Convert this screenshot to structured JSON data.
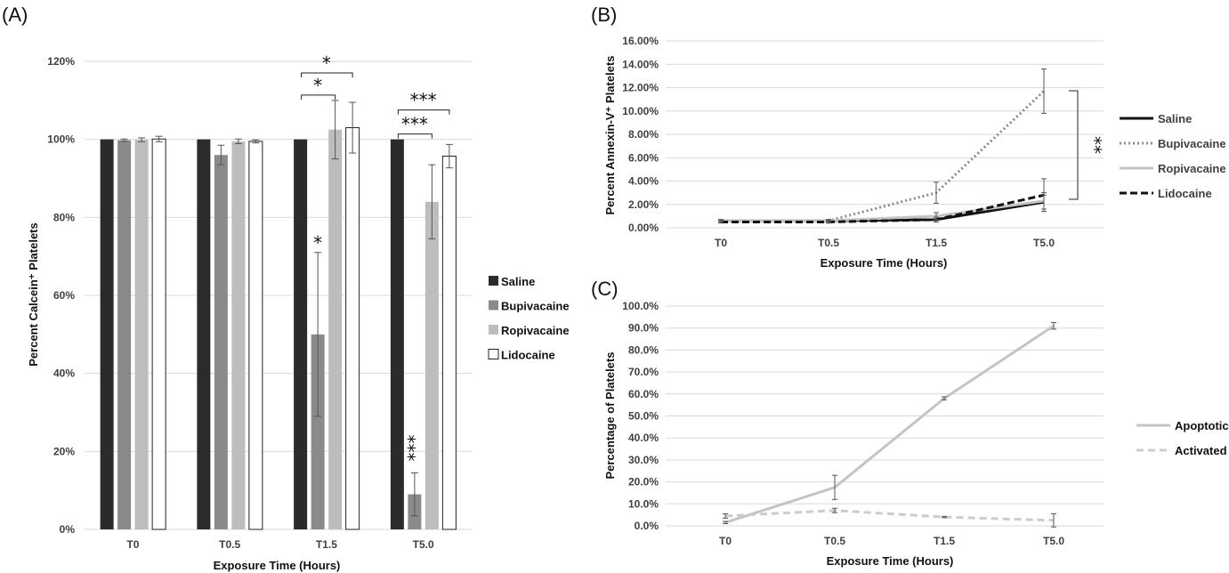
{
  "colors": {
    "saline": "#2b2b2b",
    "bupivacaine": "#8a8a8a",
    "ropivacaine": "#bdbdbd",
    "lidocaine": "#ffffff",
    "apoptotic": "#c4c4c4",
    "activated": "#cccccc",
    "grid": "#d9d9d9"
  },
  "chart_data": [
    {
      "panel": "(A)",
      "type": "bar",
      "xlabel": "Exposure Time (Hours)",
      "ylabel": "Percent Calcein⁺ Platelets",
      "ylim": [
        0,
        120
      ],
      "ytick_values": [
        0,
        20,
        40,
        60,
        80,
        100,
        120
      ],
      "ytick_labels": [
        "0%",
        "20%",
        "40%",
        "60%",
        "80%",
        "100%",
        "120%"
      ],
      "categories": [
        "T0",
        "T0.5",
        "T1.5",
        "T5.0"
      ],
      "grid": true,
      "legend_position": "right",
      "series": [
        {
          "name": "Saline",
          "values": [
            100,
            100,
            100,
            100
          ],
          "errors": [
            0,
            0,
            0,
            0
          ]
        },
        {
          "name": "Bupivacaine",
          "values": [
            99.8,
            96,
            50,
            9
          ],
          "errors": [
            0.3,
            2.5,
            21,
            5.5
          ]
        },
        {
          "name": "Ropivacaine",
          "values": [
            99.9,
            99.5,
            102.5,
            84
          ],
          "errors": [
            0.5,
            0.6,
            7.5,
            9.5
          ]
        },
        {
          "name": "Lidocaine",
          "values": [
            100.1,
            99.5,
            103,
            95.7
          ],
          "errors": [
            0.7,
            0.4,
            6.5,
            3
          ]
        }
      ],
      "annotations": [
        {
          "text": "*",
          "category": "T1.5",
          "series": "Bupivacaine"
        },
        {
          "text": "***",
          "category": "T5.0",
          "series": "Bupivacaine"
        },
        {
          "text": "*",
          "category": "T1.5",
          "bracket": [
            "Saline",
            "Ropivacaine"
          ]
        },
        {
          "text": "*",
          "category": "T1.5",
          "bracket": [
            "Saline",
            "Lidocaine"
          ]
        },
        {
          "text": "***",
          "category": "T5.0",
          "bracket": [
            "Saline",
            "Ropivacaine"
          ]
        },
        {
          "text": "***",
          "category": "T5.0",
          "bracket": [
            "Saline",
            "Lidocaine"
          ]
        }
      ]
    },
    {
      "panel": "(B)",
      "type": "line",
      "xlabel": "Exposure Time (Hours)",
      "ylabel": "Percent Annexin-V⁺ Platelets",
      "ylim": [
        0,
        16
      ],
      "ytick_values": [
        0,
        2,
        4,
        6,
        8,
        10,
        12,
        14,
        16
      ],
      "ytick_labels": [
        "0.00%",
        "2.00%",
        "4.00%",
        "6.00%",
        "8.00%",
        "10.00%",
        "12.00%",
        "14.00%",
        "16.00%"
      ],
      "categories": [
        "T0",
        "T0.5",
        "T1.5",
        "T5.0"
      ],
      "grid": true,
      "legend_position": "right",
      "series": [
        {
          "name": "Saline",
          "values": [
            0.6,
            0.6,
            0.7,
            2.2
          ],
          "errors": [
            0.1,
            0.1,
            0.2,
            0.6
          ],
          "style": "solid-black"
        },
        {
          "name": "Bupivacaine",
          "values": [
            0.6,
            0.6,
            3.0,
            11.7
          ],
          "errors": [
            0.1,
            0.1,
            0.9,
            1.9
          ],
          "style": "dotted-gray"
        },
        {
          "name": "Ropivacaine",
          "values": [
            0.6,
            0.6,
            1.0,
            2.3
          ],
          "errors": [
            0.1,
            0.1,
            0.3,
            0.7
          ],
          "style": "solid-lightgray"
        },
        {
          "name": "Lidocaine",
          "values": [
            0.5,
            0.5,
            0.7,
            2.8
          ],
          "errors": [
            0.1,
            0.1,
            0.2,
            1.4
          ],
          "style": "dashed-black"
        }
      ],
      "annotations": [
        {
          "text": "**",
          "category": "T5.0",
          "bracket": [
            "Bupivacaine",
            "others"
          ]
        }
      ]
    },
    {
      "panel": "(C)",
      "type": "line",
      "xlabel": "Exposure Time (Hours)",
      "ylabel": "Percentage of Platelets",
      "ylim": [
        0,
        100
      ],
      "ytick_values": [
        0,
        10,
        20,
        30,
        40,
        50,
        60,
        70,
        80,
        90,
        100
      ],
      "ytick_labels": [
        "0.0%",
        "10.0%",
        "20.0%",
        "30.0%",
        "40.0%",
        "50.0%",
        "60.0%",
        "70.0%",
        "80.0%",
        "90.0%",
        "100.0%"
      ],
      "categories": [
        "T0",
        "T0.5",
        "T1.5",
        "T5.0"
      ],
      "grid": true,
      "legend_position": "right",
      "series": [
        {
          "name": "Apoptotic",
          "values": [
            1.5,
            17.5,
            58,
            91
          ],
          "errors": [
            0.5,
            5.5,
            0.7,
            1.5
          ],
          "style": "solid-lightgray"
        },
        {
          "name": "Activated",
          "values": [
            4.5,
            7,
            4,
            2.5
          ],
          "errors": [
            1,
            1,
            0.3,
            3
          ],
          "style": "dashed-lightgray"
        }
      ]
    }
  ]
}
